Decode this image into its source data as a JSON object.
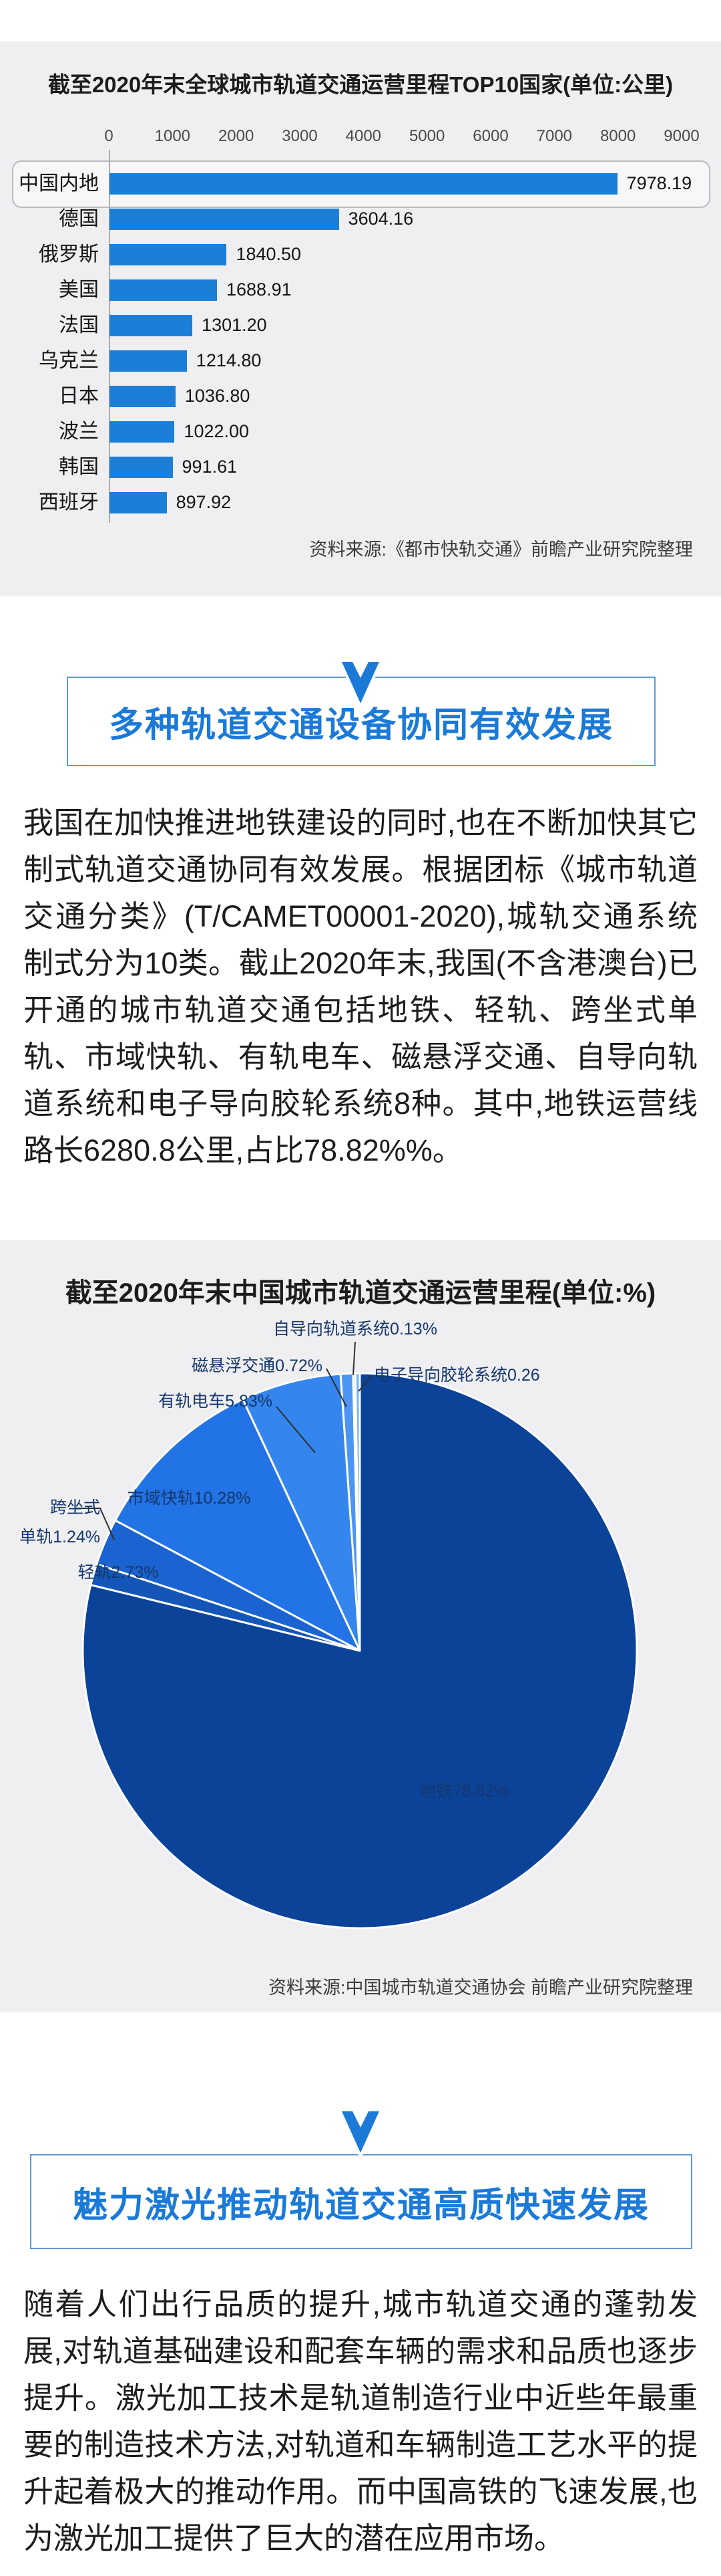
{
  "page": {
    "background": "#ffffff",
    "card_background": "#efeff1",
    "accent_blue": "#1b7ad8"
  },
  "chart_data": [
    {
      "type": "bar",
      "orientation": "horizontal",
      "title": "截至2020年末全球城市轨道交通运营里程TOP10国家(单位:公里)",
      "unit": "公里",
      "categories": [
        "中国内地",
        "德国",
        "俄罗斯",
        "美国",
        "法国",
        "乌克兰",
        "日本",
        "波兰",
        "韩国",
        "西班牙"
      ],
      "values": [
        7978.19,
        3604.16,
        1840.5,
        1688.91,
        1301.2,
        1214.8,
        1036.8,
        1022.0,
        991.61,
        897.92
      ],
      "value_labels": [
        "7978.19",
        "3604.16",
        "1840.50",
        "1688.91",
        "1301.20",
        "1214.80",
        "1036.80",
        "1022.00",
        "991.61",
        "897.92"
      ],
      "xlim": [
        0,
        9000
      ],
      "ticks": [
        "0",
        "1000",
        "2000",
        "3000",
        "4000",
        "5000",
        "6000",
        "7000",
        "8000",
        "9000"
      ],
      "bar_color": "#1b7fd8",
      "highlight_index": 0,
      "grid": false,
      "source": "资料来源:《都市快轨交通》前瞻产业研究院整理"
    },
    {
      "type": "pie",
      "title": "截至2020年末中国城市轨道交通运营里程(单位:%)",
      "slices": [
        {
          "label": "地铁",
          "value": 78.82,
          "display": "地铁78.82%",
          "color": "#0b4399"
        },
        {
          "label": "跨坐式单轨",
          "value": 1.24,
          "display": "跨坐式单轨1.24%",
          "display_lines": [
            "跨坐式",
            "单轨1.24%"
          ],
          "color": "#1356b8"
        },
        {
          "label": "轻轨",
          "value": 2.73,
          "display": "轻轨2.73%",
          "color": "#1a63d0"
        },
        {
          "label": "市域快轨",
          "value": 10.28,
          "display": "市域快轨10.28%",
          "color": "#2173e6"
        },
        {
          "label": "有轨电车",
          "value": 5.83,
          "display": "有轨电车5.83%",
          "color": "#3585ee"
        },
        {
          "label": "磁悬浮交通",
          "value": 0.72,
          "display": "磁悬浮交通0.72%",
          "color": "#4c95f2"
        },
        {
          "label": "自导向轨道系统",
          "value": 0.13,
          "display": "自导向轨道系统0.13%",
          "color": "#66a7f6"
        },
        {
          "label": "电子导向胶轮系统",
          "value": 0.26,
          "display": "电子导向胶轮系统0.26",
          "color": "#7ab4f8"
        }
      ],
      "source": "资料来源:中国城市轨道交通协会 前瞻产业研究院整理"
    }
  ],
  "section1": {
    "header": "多种轨道交通设备协同有效发展",
    "paragraph": "我国在加快推进地铁建设的同时,也在不断加快其它制式轨道交通协同有效发展。根据团标《城市轨道交通分类》(T/CAMET00001-2020),城轨交通系统制式分为10类。截止2020年末,我国(不含港澳台)已开通的城市轨道交通包括地铁、轻轨、跨坐式单轨、市域快轨、有轨电车、磁悬浮交通、自导向轨道系统和电子导向胶轮系统8种。其中,地铁运营线路长6280.8公里,占比78.82%%。"
  },
  "section2": {
    "header": "魅力激光推动轨道交通高质快速发展",
    "paragraph": "随着人们出行品质的提升,城市轨道交通的蓬勃发展,对轨道基础建设和配套车辆的需求和品质也逐步提升。激光加工技术是轨道制造行业中近些年最重要的制造技术方法,对轨道和车辆制造工艺水平的提升起着极大的推动作用。而中国高铁的飞速发展,也为激光加工提供了巨大的潜在应用市场。"
  }
}
